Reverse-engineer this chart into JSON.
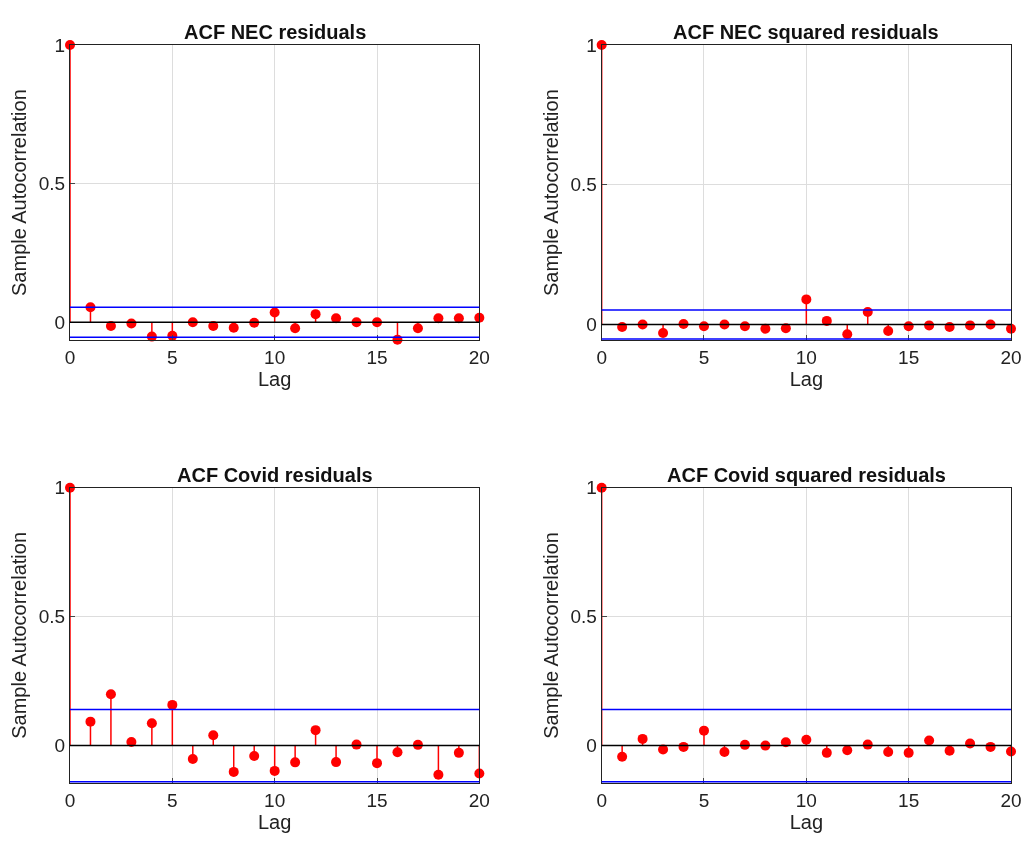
{
  "chart_data": [
    {
      "type": "lollipop",
      "title": "ACF NEC residuals",
      "xlabel": "Lag",
      "ylabel": "Sample Autocorrelation",
      "x": [
        0,
        1,
        2,
        3,
        4,
        5,
        6,
        7,
        8,
        9,
        10,
        11,
        12,
        13,
        14,
        15,
        16,
        17,
        18,
        19,
        20
      ],
      "values": [
        1,
        0.054,
        -0.014,
        -0.005,
        -0.052,
        -0.049,
        0,
        -0.014,
        -0.02,
        -0.002,
        0.035,
        -0.022,
        0.029,
        0.014,
        0,
        0,
        -0.063,
        -0.022,
        0.014,
        0.014,
        0.016
      ],
      "color": "#ff0000",
      "marker": "circle",
      "xlim": [
        0,
        20
      ],
      "ylim": [
        -0.065,
        1
      ],
      "xticks": [
        0,
        5,
        10,
        15,
        20
      ],
      "yticks": [
        0,
        0.5,
        1
      ],
      "grid": true,
      "ref_lines": [
        {
          "axis": "y",
          "value": 0.054,
          "color": "#0000ff"
        },
        {
          "axis": "y",
          "value": -0.054,
          "color": "#0000ff"
        },
        {
          "axis": "y",
          "value": 0,
          "color": "#000000"
        }
      ]
    },
    {
      "type": "lollipop",
      "title": "ACF NEC squared residuals",
      "xlabel": "Lag",
      "ylabel": "Sample Autocorrelation",
      "x": [
        0,
        1,
        2,
        3,
        4,
        5,
        6,
        7,
        8,
        9,
        10,
        11,
        12,
        13,
        14,
        15,
        16,
        17,
        18,
        19,
        20
      ],
      "values": [
        1,
        -0.009,
        0,
        -0.03,
        0.002,
        -0.006,
        0,
        -0.006,
        -0.015,
        -0.013,
        0.09,
        0.013,
        -0.035,
        0.045,
        -0.023,
        -0.006,
        -0.003,
        -0.009,
        -0.003,
        0,
        -0.015
      ],
      "color": "#ff0000",
      "marker": "circle",
      "xlim": [
        0,
        20
      ],
      "ylim": [
        -0.056,
        1
      ],
      "xticks": [
        0,
        5,
        10,
        15,
        20
      ],
      "yticks": [
        0,
        0.5,
        1
      ],
      "grid": true,
      "ref_lines": [
        {
          "axis": "y",
          "value": 0.052,
          "color": "#0000ff"
        },
        {
          "axis": "y",
          "value": -0.052,
          "color": "#0000ff"
        },
        {
          "axis": "y",
          "value": 0,
          "color": "#000000"
        }
      ]
    },
    {
      "type": "lollipop",
      "title": "ACF Covid residuals",
      "xlabel": "Lag",
      "ylabel": "Sample Autocorrelation",
      "x": [
        0,
        1,
        2,
        3,
        4,
        5,
        6,
        7,
        8,
        9,
        10,
        11,
        12,
        13,
        14,
        15,
        16,
        17,
        18,
        19,
        20
      ],
      "values": [
        1,
        0.093,
        0.199,
        0.014,
        0.087,
        0.158,
        -0.052,
        0.04,
        -0.102,
        -0.04,
        -0.098,
        -0.065,
        0.06,
        -0.064,
        0.004,
        -0.068,
        -0.026,
        0.003,
        -0.113,
        -0.028,
        -0.108
      ],
      "color": "#ff0000",
      "marker": "circle",
      "xlim": [
        0,
        20
      ],
      "ylim": [
        -0.145,
        1
      ],
      "xticks": [
        0,
        5,
        10,
        15,
        20
      ],
      "yticks": [
        0,
        0.5,
        1
      ],
      "grid": true,
      "ref_lines": [
        {
          "axis": "y",
          "value": 0.14,
          "color": "#0000ff"
        },
        {
          "axis": "y",
          "value": -0.14,
          "color": "#0000ff"
        },
        {
          "axis": "y",
          "value": 0,
          "color": "#000000"
        }
      ]
    },
    {
      "type": "lollipop",
      "title": "ACF Covid squared residuals",
      "xlabel": "Lag",
      "ylabel": "Sample Autocorrelation",
      "x": [
        0,
        1,
        2,
        3,
        4,
        5,
        6,
        7,
        8,
        9,
        10,
        11,
        12,
        13,
        14,
        15,
        16,
        17,
        18,
        19,
        20
      ],
      "values": [
        1,
        -0.043,
        0.026,
        -0.015,
        -0.005,
        0.058,
        -0.025,
        0.003,
        0,
        0.013,
        0.023,
        -0.028,
        -0.018,
        0.004,
        -0.025,
        -0.028,
        0.02,
        -0.02,
        0.008,
        -0.005,
        -0.023
      ],
      "color": "#ff0000",
      "marker": "circle",
      "xlim": [
        0,
        20
      ],
      "ylim": [
        -0.145,
        1
      ],
      "xticks": [
        0,
        5,
        10,
        15,
        20
      ],
      "yticks": [
        0,
        0.5,
        1
      ],
      "grid": true,
      "ref_lines": [
        {
          "axis": "y",
          "value": 0.14,
          "color": "#0000ff"
        },
        {
          "axis": "y",
          "value": -0.14,
          "color": "#0000ff"
        },
        {
          "axis": "y",
          "value": 0,
          "color": "#000000"
        }
      ]
    }
  ]
}
